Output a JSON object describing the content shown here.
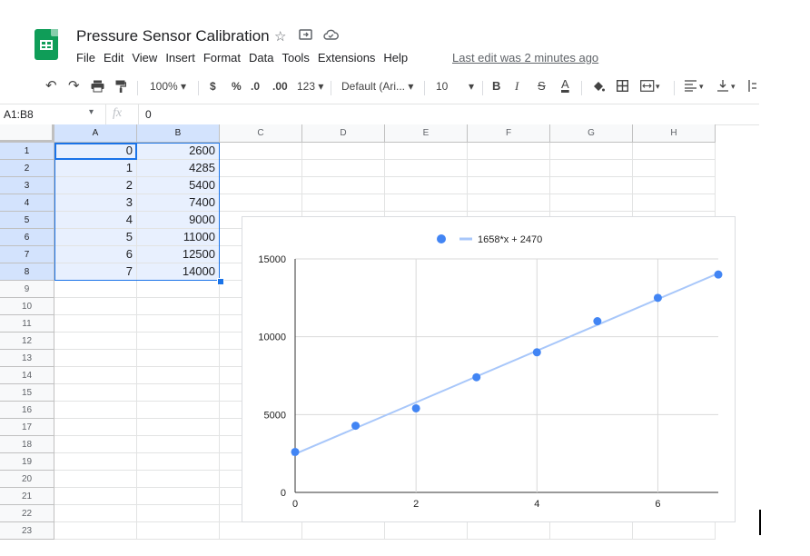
{
  "header": {
    "title": "Pressure Sensor Calibration",
    "menu": [
      "File",
      "Edit",
      "View",
      "Insert",
      "Format",
      "Data",
      "Tools",
      "Extensions",
      "Help"
    ],
    "last_edit": "Last edit was 2 minutes ago"
  },
  "toolbar": {
    "zoom": "100%",
    "currency": "$",
    "percent": "%",
    "decrease_decimal": ".0",
    "increase_decimal": ".00",
    "more_formats": "123",
    "font": "Default (Ari...",
    "font_size": "10",
    "bold": "B",
    "italic": "I",
    "strikethrough": "S",
    "text_color": "A"
  },
  "formula_bar": {
    "name_box": "A1:B8",
    "fx": "fx",
    "value": "0"
  },
  "columns": [
    "A",
    "B",
    "C",
    "D",
    "E",
    "F",
    "G",
    "H"
  ],
  "rows": [
    "1",
    "2",
    "3",
    "4",
    "5",
    "6",
    "7",
    "8",
    "9",
    "10",
    "11",
    "12",
    "13",
    "14",
    "15",
    "16",
    "17",
    "18",
    "19",
    "20",
    "21",
    "22",
    "23"
  ],
  "cells": {
    "A": [
      "0",
      "1",
      "2",
      "3",
      "4",
      "5",
      "6",
      "7"
    ],
    "B": [
      "2600",
      "4285",
      "5400",
      "7400",
      "9000",
      "11000",
      "12500",
      "14000"
    ]
  },
  "colors": {
    "point": "#4285f4",
    "trendline": "#a8c7fa",
    "selection": "#e8f0fe",
    "selection_border": "#1a73e8"
  },
  "chart_data": {
    "type": "scatter",
    "x": [
      0,
      1,
      2,
      3,
      4,
      5,
      6,
      7
    ],
    "y": [
      2600,
      4285,
      5400,
      7400,
      9000,
      11000,
      12500,
      14000
    ],
    "trendline": {
      "label": "1658*x + 2470",
      "slope": 1658,
      "intercept": 2470
    },
    "xlim": [
      0,
      7
    ],
    "ylim": [
      0,
      15000
    ],
    "xticks": [
      "0",
      "2",
      "4",
      "6"
    ],
    "yticks": [
      "0",
      "5000",
      "10000",
      "15000"
    ],
    "grid": true,
    "legend": "top"
  }
}
